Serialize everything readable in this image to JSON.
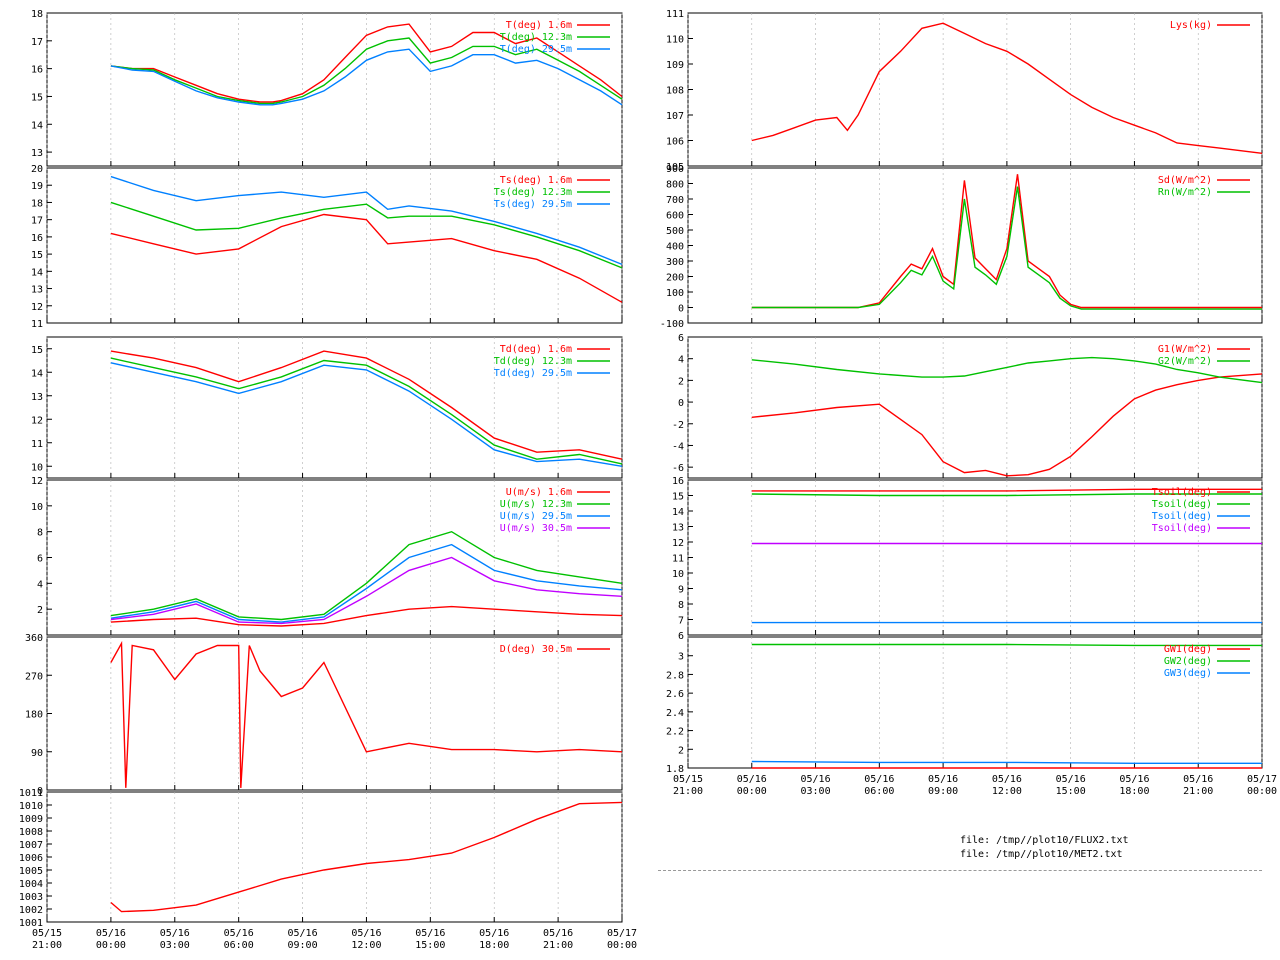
{
  "colors": {
    "red": "#ff0000",
    "green": "#00c000",
    "blue": "#0080ff",
    "magenta": "#c000ff",
    "axis": "#000000",
    "grid": "#b0b0b0"
  },
  "x_ticks": [
    "05/15\n21:00",
    "05/16\n00:00",
    "05/16\n03:00",
    "05/16\n06:00",
    "05/16\n09:00",
    "05/16\n12:00",
    "05/16\n15:00",
    "05/16\n18:00",
    "05/16\n21:00",
    "05/17\n00:00"
  ],
  "files": [
    "file: /tmp//plot10/FLUX2.txt",
    "file: /tmp//plot10/MET2.txt"
  ],
  "chart_data": [
    {
      "id": "T",
      "type": "line",
      "ylim": [
        12.5,
        18
      ],
      "yticks": [
        "18",
        "17",
        "16",
        "15",
        "14",
        "13"
      ],
      "series": [
        {
          "name": "T(deg)  1.6m",
          "color": "red"
        },
        {
          "name": "T(deg) 12.3m",
          "color": "green"
        },
        {
          "name": "T(deg) 29.5m",
          "color": "blue"
        }
      ],
      "x": [
        0,
        1,
        2,
        3,
        4,
        5,
        6,
        7,
        7.4,
        7.6,
        8,
        9,
        10,
        11,
        12,
        13,
        14,
        15,
        16,
        17,
        18,
        19,
        20,
        21,
        22,
        23,
        24
      ],
      "y": [
        [
          16.1,
          16.0,
          16.0,
          15.7,
          15.4,
          15.1,
          14.9,
          14.8,
          14.8,
          14.8,
          14.85,
          15.1,
          15.6,
          16.4,
          17.2,
          17.5,
          17.6,
          16.6,
          16.8,
          17.3,
          17.3,
          16.9,
          17.1,
          16.6,
          16.1,
          15.6,
          15.0
        ],
        [
          16.1,
          16.0,
          15.95,
          15.6,
          15.3,
          15.0,
          14.85,
          14.75,
          14.75,
          14.75,
          14.8,
          15.0,
          15.4,
          16.0,
          16.7,
          17.0,
          17.1,
          16.2,
          16.4,
          16.8,
          16.8,
          16.5,
          16.7,
          16.3,
          15.9,
          15.4,
          14.9
        ],
        [
          16.1,
          15.95,
          15.9,
          15.55,
          15.2,
          14.95,
          14.8,
          14.7,
          14.7,
          14.7,
          14.75,
          14.9,
          15.2,
          15.7,
          16.3,
          16.6,
          16.7,
          15.9,
          16.1,
          16.5,
          16.5,
          16.2,
          16.3,
          16.0,
          15.6,
          15.2,
          14.7
        ]
      ]
    },
    {
      "id": "Ts",
      "type": "line",
      "ylim": [
        11,
        20
      ],
      "yticks": [
        "20",
        "19",
        "18",
        "17",
        "16",
        "15",
        "14",
        "13",
        "12",
        "11"
      ],
      "series": [
        {
          "name": "Ts(deg)  1.6m",
          "color": "red"
        },
        {
          "name": "Ts(deg) 12.3m",
          "color": "green"
        },
        {
          "name": "Ts(deg) 29.5m",
          "color": "blue"
        }
      ],
      "x": [
        0,
        2,
        4,
        6,
        8,
        10,
        12,
        13,
        14,
        16,
        18,
        20,
        22,
        24
      ],
      "y": [
        [
          16.2,
          15.6,
          15.0,
          15.3,
          16.6,
          17.3,
          17.0,
          15.6,
          15.7,
          15.9,
          15.2,
          14.7,
          13.6,
          12.2
        ],
        [
          18.0,
          17.2,
          16.4,
          16.5,
          17.1,
          17.6,
          17.9,
          17.1,
          17.2,
          17.2,
          16.7,
          16.0,
          15.2,
          14.2
        ],
        [
          19.5,
          18.7,
          18.1,
          18.4,
          18.6,
          18.3,
          18.6,
          17.6,
          17.8,
          17.5,
          16.9,
          16.2,
          15.4,
          14.4
        ]
      ]
    },
    {
      "id": "Td",
      "type": "line",
      "ylim": [
        9.5,
        15.5
      ],
      "yticks": [
        "15",
        "14",
        "13",
        "12",
        "11",
        "10"
      ],
      "series": [
        {
          "name": "Td(deg)  1.6m",
          "color": "red"
        },
        {
          "name": "Td(deg) 12.3m",
          "color": "green"
        },
        {
          "name": "Td(deg) 29.5m",
          "color": "blue"
        }
      ],
      "x": [
        0,
        2,
        4,
        6,
        8,
        10,
        12,
        14,
        16,
        18,
        20,
        22,
        24
      ],
      "y": [
        [
          14.9,
          14.6,
          14.2,
          13.6,
          14.2,
          14.9,
          14.6,
          13.7,
          12.5,
          11.2,
          10.6,
          10.7,
          10.3
        ],
        [
          14.6,
          14.2,
          13.8,
          13.3,
          13.8,
          14.5,
          14.3,
          13.4,
          12.2,
          10.9,
          10.3,
          10.5,
          10.1
        ],
        [
          14.4,
          14.0,
          13.6,
          13.1,
          13.6,
          14.3,
          14.1,
          13.2,
          12.0,
          10.7,
          10.2,
          10.3,
          10.0
        ]
      ]
    },
    {
      "id": "U",
      "type": "line",
      "ylim": [
        0,
        12
      ],
      "yticks": [
        "12",
        "10",
        "8",
        "6",
        "4",
        "2"
      ],
      "series": [
        {
          "name": "U(m/s)  1.6m",
          "color": "red"
        },
        {
          "name": "U(m/s) 12.3m",
          "color": "green"
        },
        {
          "name": "U(m/s) 29.5m",
          "color": "blue"
        },
        {
          "name": "U(m/s) 30.5m",
          "color": "magenta"
        }
      ],
      "x": [
        0,
        2,
        4,
        6,
        8,
        10,
        12,
        14,
        16,
        18,
        20,
        22,
        24
      ],
      "y": [
        [
          1.0,
          1.2,
          1.3,
          0.8,
          0.7,
          0.9,
          1.5,
          2.0,
          2.2,
          2.0,
          1.8,
          1.6,
          1.5
        ],
        [
          1.5,
          2.0,
          2.8,
          1.4,
          1.2,
          1.6,
          4.0,
          7.0,
          8.0,
          6.0,
          5.0,
          4.5,
          4.0
        ],
        [
          1.3,
          1.8,
          2.6,
          1.2,
          1.0,
          1.4,
          3.6,
          6.0,
          7.0,
          5.0,
          4.2,
          3.8,
          3.5
        ],
        [
          1.2,
          1.6,
          2.4,
          1.0,
          0.9,
          1.2,
          3.0,
          5.0,
          6.0,
          4.2,
          3.5,
          3.2,
          3.0
        ]
      ]
    },
    {
      "id": "D",
      "type": "line",
      "ylim": [
        0,
        360
      ],
      "yticks": [
        "360",
        "270",
        "180",
        "90",
        "0"
      ],
      "series": [
        {
          "name": "D(deg)  30.5m",
          "color": "red"
        }
      ],
      "x": [
        0,
        0.5,
        0.7,
        1,
        2,
        3,
        4,
        5,
        6,
        6.1,
        6.5,
        7,
        8,
        9,
        10,
        12,
        14,
        16,
        18,
        20,
        22,
        24
      ],
      "y": [
        300,
        345,
        5,
        340,
        330,
        260,
        320,
        340,
        340,
        5,
        340,
        280,
        220,
        240,
        300,
        90,
        110,
        95,
        95,
        90,
        95,
        90
      ]
    },
    {
      "id": "P",
      "type": "line",
      "ylim": [
        1001,
        1011
      ],
      "yticks": [
        "1011",
        "1010",
        "1009",
        "1008",
        "1007",
        "1006",
        "1005",
        "1004",
        "1003",
        "1002",
        "1001"
      ],
      "series": [],
      "x": [
        0,
        0.5,
        2,
        4,
        6,
        8,
        10,
        12,
        14,
        16,
        18,
        20,
        22,
        24
      ],
      "y": [
        1002.5,
        1001.8,
        1001.9,
        1002.3,
        1003.3,
        1004.3,
        1005.0,
        1005.5,
        1005.8,
        1006.3,
        1007.5,
        1008.9,
        1010.1,
        1010.2
      ]
    },
    {
      "id": "Lys",
      "type": "line",
      "ylim": [
        105,
        111
      ],
      "yticks": [
        "111",
        "110",
        "109",
        "108",
        "107",
        "106",
        "105"
      ],
      "series": [
        {
          "name": "Lys(kg)",
          "color": "red"
        }
      ],
      "x": [
        0,
        1,
        2,
        3,
        4,
        4.5,
        5,
        6,
        7,
        8,
        9,
        10,
        11,
        12,
        13,
        14,
        15,
        16,
        17,
        18,
        19,
        20,
        21,
        22,
        23,
        24
      ],
      "y": [
        106.0,
        106.2,
        106.5,
        106.8,
        106.9,
        106.4,
        107.0,
        108.7,
        109.5,
        110.4,
        110.6,
        110.2,
        109.8,
        109.5,
        109.0,
        108.4,
        107.8,
        107.3,
        106.9,
        106.6,
        106.3,
        105.9,
        105.8,
        105.7,
        105.6,
        105.5
      ]
    },
    {
      "id": "Rad",
      "type": "line",
      "ylim": [
        -100,
        900
      ],
      "yticks": [
        "900",
        "800",
        "700",
        "600",
        "500",
        "400",
        "300",
        "200",
        "100",
        "0",
        "-100"
      ],
      "series": [
        {
          "name": "Sd(W/m^2)",
          "color": "red"
        },
        {
          "name": "Rn(W/m^2)",
          "color": "green"
        }
      ],
      "x": [
        0,
        5,
        6,
        7,
        7.5,
        8,
        8.5,
        9,
        9.5,
        10,
        10.5,
        11,
        11.5,
        12,
        12.5,
        13,
        13.5,
        14,
        14.5,
        15,
        15.5,
        16,
        17,
        18,
        24
      ],
      "y": [
        [
          0,
          0,
          30,
          200,
          280,
          250,
          380,
          200,
          150,
          820,
          320,
          250,
          180,
          380,
          860,
          300,
          250,
          200,
          80,
          20,
          0,
          0,
          0,
          0,
          0
        ],
        [
          0,
          0,
          20,
          160,
          240,
          210,
          330,
          170,
          120,
          700,
          260,
          210,
          150,
          330,
          780,
          260,
          210,
          160,
          60,
          10,
          -10,
          -10,
          -10,
          -10,
          -10
        ]
      ]
    },
    {
      "id": "G",
      "type": "line",
      "ylim": [
        -7,
        6
      ],
      "yticks": [
        "6",
        "4",
        "2",
        "0",
        "-2",
        "-4",
        "-6"
      ],
      "series": [
        {
          "name": "G1(W/m^2)",
          "color": "red"
        },
        {
          "name": "G2(W/m^2)",
          "color": "green"
        }
      ],
      "x": [
        0,
        2,
        4,
        6,
        8,
        9,
        10,
        11,
        12,
        13,
        14,
        15,
        16,
        17,
        18,
        19,
        20,
        21,
        22,
        24
      ],
      "y": [
        [
          -1.4,
          -1.0,
          -0.5,
          -0.2,
          -3.0,
          -5.5,
          -6.5,
          -6.3,
          -6.8,
          -6.7,
          -6.2,
          -5.0,
          -3.2,
          -1.3,
          0.3,
          1.1,
          1.6,
          2.0,
          2.3,
          2.6
        ],
        [
          3.9,
          3.5,
          3.0,
          2.6,
          2.3,
          2.3,
          2.4,
          2.8,
          3.2,
          3.6,
          3.8,
          4.0,
          4.1,
          4.0,
          3.8,
          3.5,
          3.0,
          2.7,
          2.3,
          1.8
        ]
      ]
    },
    {
      "id": "Tsoil",
      "type": "line",
      "ylim": [
        6,
        16
      ],
      "yticks": [
        "16",
        "15",
        "14",
        "13",
        "12",
        "11",
        "10",
        "9",
        "8",
        "7",
        "6"
      ],
      "series": [
        {
          "name": "Tsoil(deg)",
          "color": "red"
        },
        {
          "name": "Tsoil(deg)",
          "color": "green"
        },
        {
          "name": "Tsoil(deg)",
          "color": "blue"
        },
        {
          "name": "Tsoil(deg)",
          "color": "magenta"
        }
      ],
      "x": [
        0,
        6,
        12,
        18,
        24
      ],
      "y": [
        [
          15.3,
          15.3,
          15.3,
          15.4,
          15.4
        ],
        [
          15.1,
          15.0,
          15.0,
          15.1,
          15.1
        ],
        [
          6.8,
          6.8,
          6.8,
          6.8,
          6.8
        ],
        [
          11.9,
          11.9,
          11.9,
          11.9,
          11.9
        ]
      ]
    },
    {
      "id": "GW",
      "type": "line",
      "ylim": [
        1.8,
        3.2
      ],
      "yticks": [
        "3",
        "2.8",
        "2.6",
        "2.4",
        "2.2",
        "2",
        "1.8"
      ],
      "series": [
        {
          "name": "GW1(deg)",
          "color": "red"
        },
        {
          "name": "GW2(deg)",
          "color": "green"
        },
        {
          "name": "GW3(deg)",
          "color": "blue"
        }
      ],
      "x": [
        0,
        6,
        12,
        18,
        24
      ],
      "y": [
        [
          1.8,
          1.8,
          1.8,
          1.8,
          1.8
        ],
        [
          3.12,
          3.12,
          3.12,
          3.11,
          3.11
        ],
        [
          1.87,
          1.86,
          1.86,
          1.85,
          1.85
        ]
      ]
    }
  ]
}
